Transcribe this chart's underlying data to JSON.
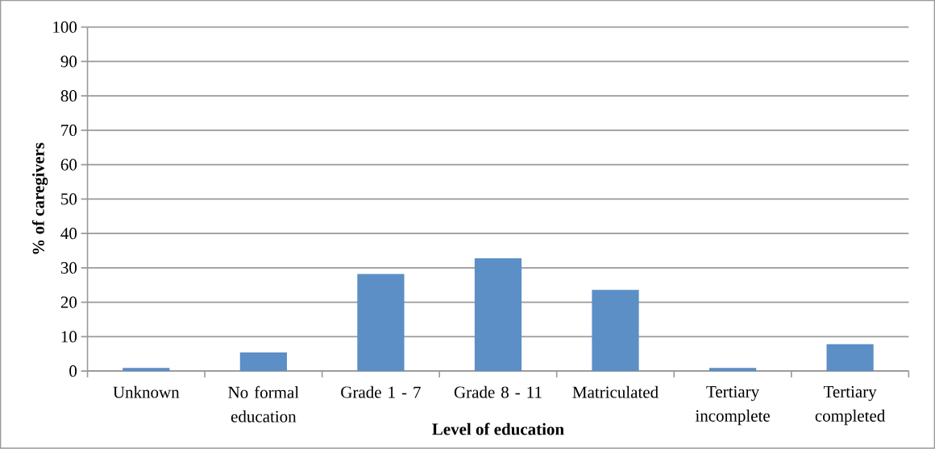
{
  "chart_data": {
    "type": "bar",
    "xlabel": "Level of education",
    "ylabel": "% of caregivers",
    "categories": [
      "Unknown",
      "No formal education",
      "Grade 1 - 7",
      "Grade 8 - 11",
      "Matriculated",
      "Tertiary incomplete",
      "Tertiary completed"
    ],
    "values": [
      0.9,
      5.4,
      28.2,
      32.8,
      23.6,
      0.9,
      7.8
    ],
    "color": "#5b8fc5",
    "ylim": [
      0,
      100
    ],
    "yticks": [
      0,
      10,
      20,
      30,
      40,
      50,
      60,
      70,
      80,
      90,
      100
    ],
    "grid": "y"
  }
}
